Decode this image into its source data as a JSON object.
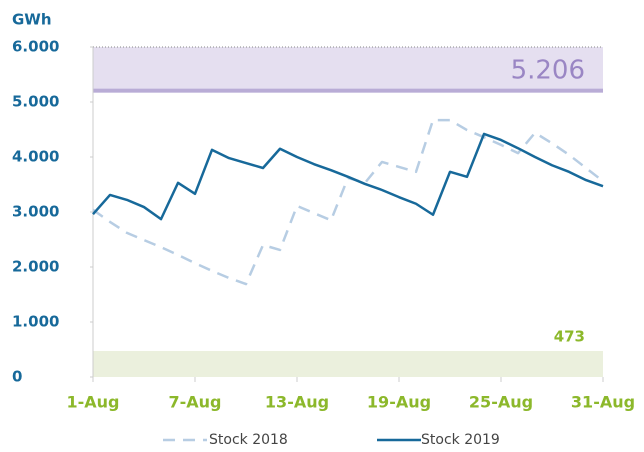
{
  "chart_data": {
    "type": "line",
    "y_axis_label": "GWh",
    "categories": [
      "1-Aug",
      null,
      null,
      null,
      null,
      null,
      "7-Aug",
      null,
      null,
      null,
      null,
      null,
      "13-Aug",
      null,
      null,
      null,
      null,
      null,
      "19-Aug",
      null,
      null,
      null,
      null,
      null,
      "25-Aug",
      null,
      null,
      null,
      null,
      null,
      "31-Aug"
    ],
    "series": [
      {
        "name": "Stock 2018",
        "color": "#b7cde3",
        "dashed": true,
        "values": [
          3040,
          2820,
          2620,
          2490,
          2360,
          2220,
          2070,
          1930,
          1800,
          1690,
          2400,
          2310,
          3110,
          2980,
          2850,
          3620,
          3530,
          3910,
          3820,
          3730,
          4670,
          4670,
          4490,
          4360,
          4220,
          4070,
          4440,
          4250,
          4040,
          3800,
          3560
        ]
      },
      {
        "name": "Stock 2019",
        "color": "#17699a",
        "dashed": false,
        "values": [
          2960,
          3310,
          3220,
          3090,
          2870,
          3530,
          3330,
          4130,
          3980,
          3890,
          3800,
          4150,
          4000,
          3870,
          3760,
          3640,
          3510,
          3400,
          3270,
          3150,
          2950,
          3730,
          3640,
          4420,
          4310,
          4160,
          4000,
          3850,
          3730,
          3580,
          3470
        ]
      }
    ],
    "upper_band": {
      "value": 5206,
      "label": "5.206",
      "color": "#e5dff0",
      "edge_color": "#b9acd6",
      "text_color": "#9a86c4"
    },
    "lower_band": {
      "value": 473,
      "label": "473",
      "color": "#ebf0dd",
      "text_color": "#8cb82b"
    },
    "ylim": [
      0,
      6000
    ],
    "yticks": [
      0,
      {
        "value": 1000,
        "label": "1.000"
      },
      {
        "value": 2000,
        "label": "2.000"
      },
      {
        "value": 3000,
        "label": "3.000"
      },
      {
        "value": 4000,
        "label": "4.000"
      },
      {
        "value": 5000,
        "label": "5.000"
      },
      {
        "value": 6000,
        "label": "6.000"
      }
    ],
    "legend": "bottom"
  }
}
